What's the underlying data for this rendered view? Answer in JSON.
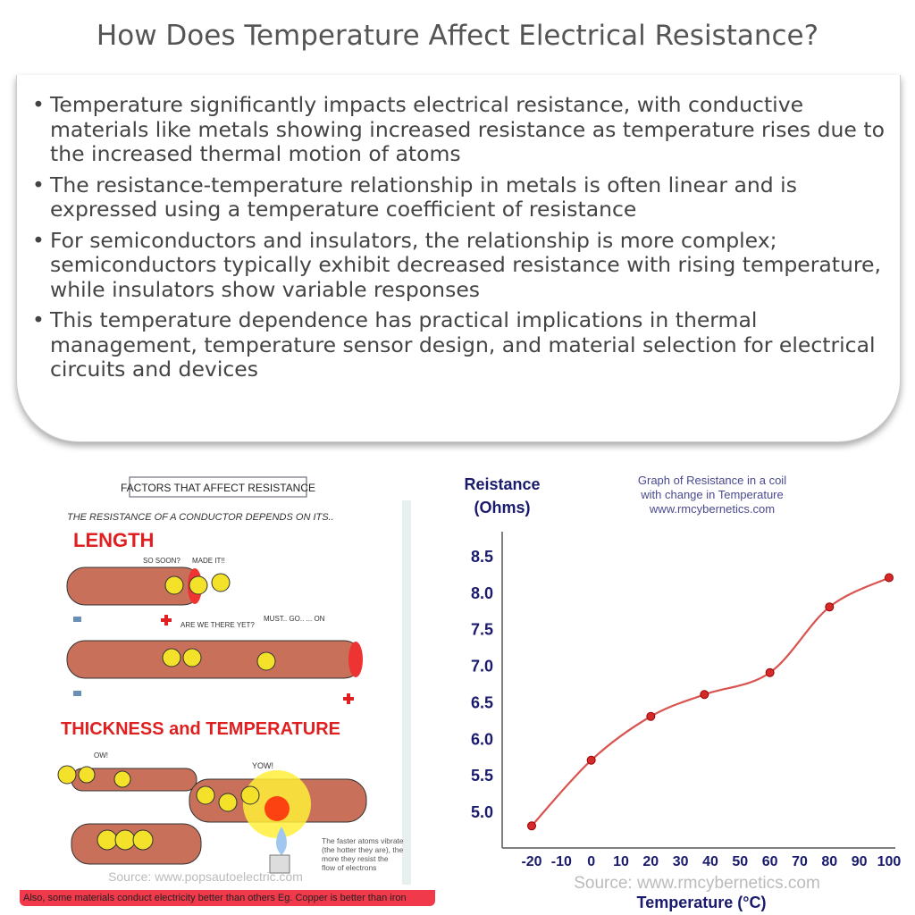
{
  "title": "How Does Temperature Affect Electrical Resistance?",
  "bullets": [
    "Temperature significantly impacts electrical resistance, with conductive materials like metals showing increased resistance as temperature rises due to the increased thermal motion of atoms",
    "The resistance-temperature relationship in metals is often linear and is expressed using a temperature coefficient of resistance",
    "For semiconductors and insulators, the relationship is more complex; semiconductors typically exhibit decreased resistance with rising temperature, while insulators show variable responses",
    "This temperature dependence has practical implications in thermal management, temperature sensor design, and material selection for electrical circuits and devices"
  ],
  "illustration": {
    "header": "FACTORS THAT AFFECT RESISTANCE",
    "intro": "THE RESISTANCE OF A CONDUCTOR DEPENDS ON ITS..",
    "length_label": "LENGTH",
    "thickness_temp_label": "THICKNESS and TEMPERATURE",
    "speech": [
      "SO SOON?",
      "MADE IT!!",
      "ARE WE THERE YET?",
      "MUST.. GO.. ... ON",
      "OW!",
      "YOW!"
    ],
    "caption": "The faster atoms vibrate (the hotter they are), the more they resist the flow of electrons",
    "source": "Source: www.popsautoelectric.com",
    "banner": "Also, some materials conduct electricity better than others Eg. Copper is better than iron",
    "colors": {
      "pipe": "#c8705a",
      "label_red": "#e02020",
      "banner": "#f0394a"
    }
  },
  "chart_data": {
    "type": "line",
    "title": "Graph of Resistance in a coil with change in Temperature",
    "title_lines": [
      "Graph of Resistance in a coil",
      "with change in Temperature",
      "www.rmcybernetics.com"
    ],
    "ylabel_lines": [
      "Reistance",
      "(Ohms)"
    ],
    "xlabel": "Temperature (°C)",
    "x_ticks": [
      "-20",
      "-10",
      "0",
      "10",
      "20",
      "30",
      "40",
      "50",
      "60",
      "70",
      "80",
      "90",
      "100"
    ],
    "y_ticks": [
      "8.5",
      "8.0",
      "7.5",
      "7.0",
      "6.5",
      "6.0",
      "5.5",
      "5.0"
    ],
    "xlim": [
      -30,
      100
    ],
    "ylim": [
      4.6,
      8.8
    ],
    "x": [
      -20,
      0,
      20,
      38,
      60,
      80,
      100
    ],
    "y": [
      4.8,
      5.7,
      6.3,
      6.6,
      6.9,
      7.8,
      8.2
    ],
    "grid": false,
    "line_color": "#d9534f",
    "axis_text_color": "#1a1a6e",
    "watermark": "Source: www.rmcybernetics.com"
  }
}
